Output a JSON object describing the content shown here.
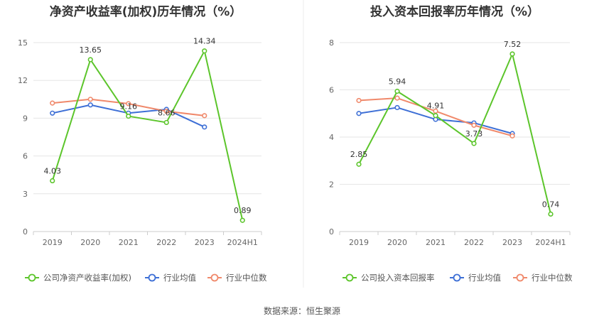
{
  "source": "数据来源：恒生聚源",
  "chart_data": [
    {
      "type": "line",
      "title": "净资产收益率(加权)历年情况（%）",
      "categories": [
        "2019",
        "2020",
        "2021",
        "2022",
        "2023",
        "2024H1"
      ],
      "yticks": [
        "0",
        "3",
        "6",
        "9",
        "12",
        "15"
      ],
      "ylim": [
        0,
        15
      ],
      "grid": true,
      "legend_position": "bottom-left",
      "series": [
        {
          "name": "公司净资产收益率(加权)",
          "color": "#5cc52b",
          "values": [
            4.03,
            13.65,
            9.16,
            8.66,
            14.34,
            0.89
          ],
          "labels": [
            "4.03",
            "13.65",
            "9.16",
            "8.66",
            "14.34",
            "0.89"
          ]
        },
        {
          "name": "行业均值",
          "color": "#3d6fd6",
          "values": [
            9.4,
            10.05,
            9.4,
            9.7,
            8.3,
            null
          ]
        },
        {
          "name": "行业中位数",
          "color": "#f0896b",
          "values": [
            10.2,
            10.5,
            10.15,
            9.55,
            9.2,
            null
          ]
        }
      ]
    },
    {
      "type": "line",
      "title": "投入资本回报率历年情况（%）",
      "categories": [
        "2019",
        "2020",
        "2021",
        "2022",
        "2023",
        "2024H1"
      ],
      "yticks": [
        "0",
        "2",
        "4",
        "6",
        "8"
      ],
      "ylim": [
        0,
        8
      ],
      "grid": true,
      "legend_position": "bottom-left",
      "series": [
        {
          "name": "公司投入资本回报率",
          "color": "#5cc52b",
          "values": [
            2.85,
            5.94,
            4.91,
            3.73,
            7.52,
            0.74
          ],
          "labels": [
            "2.85",
            "5.94",
            "4.91",
            "3.73",
            "7.52",
            "0.74"
          ]
        },
        {
          "name": "行业均值",
          "color": "#3d6fd6",
          "values": [
            5.0,
            5.25,
            4.75,
            4.6,
            4.15,
            null
          ]
        },
        {
          "name": "行业中位数",
          "color": "#f0896b",
          "values": [
            5.55,
            5.65,
            5.1,
            4.5,
            4.05,
            null
          ]
        }
      ]
    }
  ]
}
